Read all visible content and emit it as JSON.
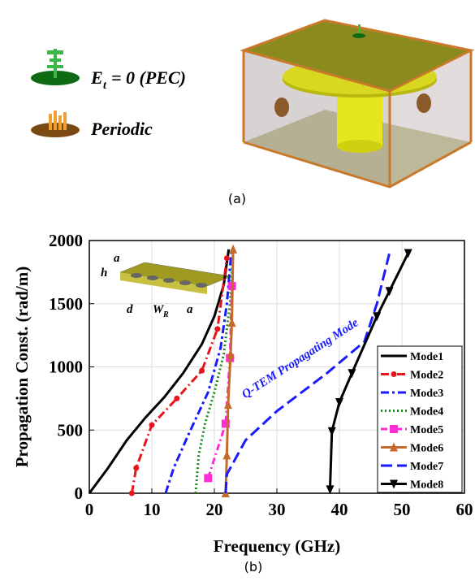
{
  "figure": {
    "panel_a_label": "(a)",
    "panel_b_label": "(b)",
    "legend_items": [
      {
        "symbol": "E",
        "subscript": "t",
        "text": "= 0 (PEC)"
      },
      {
        "text": "Periodic"
      }
    ]
  },
  "chart_data": {
    "type": "line",
    "xlabel": "Frequency (GHz)",
    "ylabel": "Propagation Const. (rad/m)",
    "xlim": [
      0,
      60
    ],
    "xticks": [
      0,
      10,
      20,
      30,
      40,
      50,
      60
    ],
    "ylim": [
      0,
      2000
    ],
    "yticks": [
      0,
      500,
      1000,
      1500,
      2000
    ],
    "grid": true,
    "legend": "lower right",
    "annotation": "Q-TEM Propagating Mode",
    "inset_labels": [
      "a",
      "h",
      "d",
      "W",
      "R",
      "a"
    ],
    "series": [
      {
        "name": "Mode1",
        "color": "#000000",
        "dash": "",
        "marker": null,
        "x": [
          0,
          3,
          6,
          9,
          12,
          15,
          18,
          20,
          21.5,
          22.3
        ],
        "values": [
          0,
          200,
          420,
          600,
          760,
          950,
          1180,
          1400,
          1650,
          1930
        ]
      },
      {
        "name": "Mode2",
        "color": "#e8141c",
        "dash": "10 4 2 4",
        "marker": "circle",
        "x": [
          6.8,
          7.5,
          10,
          14,
          18,
          20.5,
          22
        ],
        "values": [
          0,
          200,
          540,
          750,
          970,
          1300,
          1860
        ]
      },
      {
        "name": "Mode3",
        "color": "#1a1aff",
        "dash": "10 4 3 4",
        "marker": null,
        "x": [
          12.2,
          13.5,
          16,
          19,
          21,
          22,
          22.7
        ],
        "values": [
          0,
          200,
          480,
          800,
          1150,
          1500,
          1900
        ]
      },
      {
        "name": "Mode4",
        "color": "#1a8a1a",
        "dash": "2 3",
        "marker": null,
        "x": [
          17,
          17.5,
          18.5,
          20,
          21.5,
          22.5,
          23
        ],
        "values": [
          0,
          300,
          550,
          800,
          1100,
          1500,
          1900
        ]
      },
      {
        "name": "Mode5",
        "color": "#ff2bd4",
        "dash": "8 4 2 4",
        "marker": "square",
        "x": [
          19,
          21.8,
          22.5,
          22.8
        ],
        "values": [
          120,
          550,
          1070,
          1640
        ]
      },
      {
        "name": "Mode6",
        "color": "#c46a2c",
        "dash": "",
        "marker": "triangle",
        "x": [
          21.8,
          22,
          22.2,
          22.6,
          22.8,
          23
        ],
        "values": [
          0,
          300,
          700,
          1100,
          1350,
          1930
        ]
      },
      {
        "name": "Mode7",
        "color": "#1a1aff",
        "dash": "14 6",
        "marker": null,
        "x": [
          21.8,
          22,
          25,
          30,
          38,
          44,
          46,
          47,
          48
        ],
        "values": [
          0,
          150,
          420,
          650,
          950,
          1200,
          1500,
          1700,
          1900
        ]
      },
      {
        "name": "Mode8",
        "color": "#000000",
        "dash": "",
        "marker": "triangle-down",
        "x": [
          38.5,
          38.8,
          40,
          42,
          46,
          48,
          51
        ],
        "values": [
          30,
          490,
          720,
          950,
          1400,
          1600,
          1900
        ]
      }
    ]
  }
}
